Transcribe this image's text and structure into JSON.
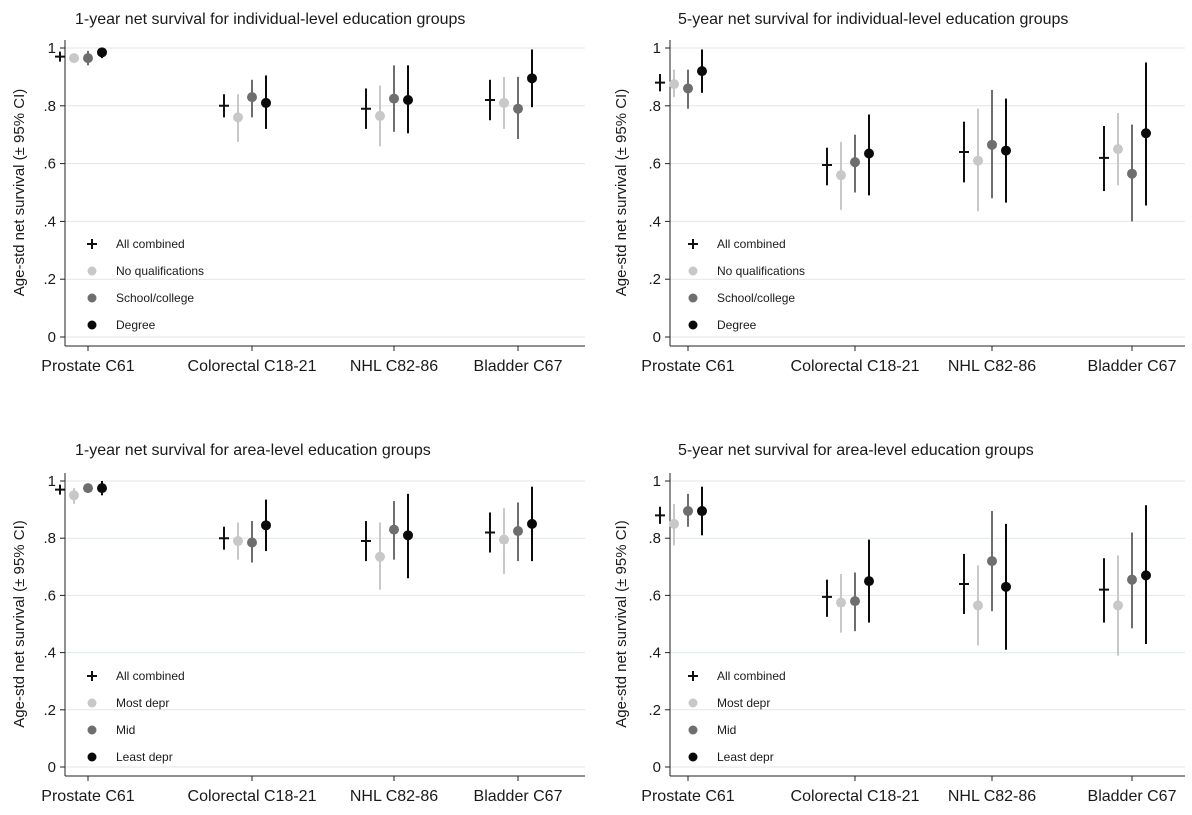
{
  "colors": {
    "All combined": "#111111",
    "light": "#c8c8c8",
    "mid": "#6e6e6e",
    "dark": "#0a0a0a",
    "grid": "#dfe7ea"
  },
  "chart_data": [
    {
      "type": "scatter",
      "title": "1-year net survival for individual-level education groups",
      "ylabel": "Age-std net survival (± 95% CI)",
      "ylim": [
        0,
        1
      ],
      "yticks": [
        0,
        0.2,
        0.4,
        0.6,
        0.8,
        1
      ],
      "ytick_labels": [
        "0",
        ".2",
        ".4",
        ".6",
        ".8",
        "1"
      ],
      "categories": [
        "Prostate C61",
        "Colorectal C18-21",
        "NHL C82-86",
        "Bladder C67"
      ],
      "legend_position": "bottom-left",
      "series": [
        {
          "name": "All combined",
          "marker": "plus",
          "color": "#111111",
          "values": [
            0.97,
            0.8,
            0.79,
            0.82
          ],
          "lower": [
            0.96,
            0.76,
            0.72,
            0.75
          ],
          "upper": [
            0.98,
            0.84,
            0.86,
            0.89
          ]
        },
        {
          "name": "No qualifications",
          "marker": "circle",
          "color": "#c8c8c8",
          "values": [
            0.965,
            0.76,
            0.765,
            0.81
          ],
          "lower": [
            0.95,
            0.675,
            0.66,
            0.72
          ],
          "upper": [
            0.98,
            0.84,
            0.87,
            0.9
          ]
        },
        {
          "name": "School/college",
          "marker": "circle",
          "color": "#6e6e6e",
          "values": [
            0.965,
            0.83,
            0.825,
            0.79
          ],
          "lower": [
            0.94,
            0.76,
            0.71,
            0.685
          ],
          "upper": [
            0.99,
            0.89,
            0.94,
            0.9
          ]
        },
        {
          "name": "Degree",
          "marker": "circle",
          "color": "#0a0a0a",
          "values": [
            0.985,
            0.81,
            0.82,
            0.895
          ],
          "lower": [
            0.965,
            0.72,
            0.705,
            0.795
          ],
          "upper": [
            1.0,
            0.905,
            0.94,
            0.995
          ]
        }
      ]
    },
    {
      "type": "scatter",
      "title": "5-year net survival for individual-level education groups",
      "ylabel": "Age-std net survival (± 95% CI)",
      "ylim": [
        0,
        1
      ],
      "yticks": [
        0,
        0.2,
        0.4,
        0.6,
        0.8,
        1
      ],
      "ytick_labels": [
        "0",
        ".2",
        ".4",
        ".6",
        ".8",
        "1"
      ],
      "categories": [
        "Prostate C61",
        "Colorectal C18-21",
        "NHL C82-86",
        "Bladder C67"
      ],
      "legend_position": "bottom-left",
      "series": [
        {
          "name": "All combined",
          "marker": "plus",
          "color": "#111111",
          "values": [
            0.88,
            0.595,
            0.64,
            0.62
          ],
          "lower": [
            0.85,
            0.525,
            0.535,
            0.505
          ],
          "upper": [
            0.91,
            0.655,
            0.745,
            0.73
          ]
        },
        {
          "name": "No qualifications",
          "marker": "circle",
          "color": "#c8c8c8",
          "values": [
            0.875,
            0.56,
            0.61,
            0.65
          ],
          "lower": [
            0.83,
            0.44,
            0.435,
            0.525
          ],
          "upper": [
            0.925,
            0.675,
            0.79,
            0.775
          ]
        },
        {
          "name": "School/college",
          "marker": "circle",
          "color": "#6e6e6e",
          "values": [
            0.86,
            0.605,
            0.665,
            0.565
          ],
          "lower": [
            0.79,
            0.5,
            0.48,
            0.4
          ],
          "upper": [
            0.925,
            0.7,
            0.855,
            0.735
          ]
        },
        {
          "name": "Degree",
          "marker": "circle",
          "color": "#0a0a0a",
          "values": [
            0.92,
            0.635,
            0.645,
            0.705
          ],
          "lower": [
            0.845,
            0.49,
            0.465,
            0.455
          ],
          "upper": [
            0.995,
            0.77,
            0.825,
            0.95
          ]
        }
      ]
    },
    {
      "type": "scatter",
      "title": "1-year net survival for area-level education groups",
      "ylabel": "Age-std net survival (± 95% CI)",
      "ylim": [
        0,
        1
      ],
      "yticks": [
        0,
        0.2,
        0.4,
        0.6,
        0.8,
        1
      ],
      "ytick_labels": [
        "0",
        ".2",
        ".4",
        ".6",
        ".8",
        "1"
      ],
      "categories": [
        "Prostate C61",
        "Colorectal C18-21",
        "NHL C82-86",
        "Bladder C67"
      ],
      "legend_position": "bottom-left",
      "series": [
        {
          "name": "All combined",
          "marker": "plus",
          "color": "#111111",
          "values": [
            0.97,
            0.8,
            0.79,
            0.82
          ],
          "lower": [
            0.96,
            0.76,
            0.72,
            0.75
          ],
          "upper": [
            0.98,
            0.84,
            0.86,
            0.89
          ]
        },
        {
          "name": "Most depr",
          "marker": "circle",
          "color": "#c8c8c8",
          "values": [
            0.95,
            0.79,
            0.735,
            0.795
          ],
          "lower": [
            0.92,
            0.725,
            0.62,
            0.675
          ],
          "upper": [
            0.975,
            0.855,
            0.855,
            0.905
          ]
        },
        {
          "name": "Mid",
          "marker": "circle",
          "color": "#6e6e6e",
          "values": [
            0.975,
            0.785,
            0.83,
            0.825
          ],
          "lower": [
            0.96,
            0.715,
            0.725,
            0.72
          ],
          "upper": [
            0.99,
            0.86,
            0.93,
            0.925
          ]
        },
        {
          "name": "Least depr",
          "marker": "circle",
          "color": "#0a0a0a",
          "values": [
            0.975,
            0.845,
            0.81,
            0.85
          ],
          "lower": [
            0.95,
            0.755,
            0.66,
            0.72
          ],
          "upper": [
            1.0,
            0.935,
            0.955,
            0.98
          ]
        }
      ]
    },
    {
      "type": "scatter",
      "title": "5-year net survival for area-level education groups",
      "ylabel": "Age-std net survival (± 95% CI)",
      "ylim": [
        0,
        1
      ],
      "yticks": [
        0,
        0.2,
        0.4,
        0.6,
        0.8,
        1
      ],
      "ytick_labels": [
        "0",
        ".2",
        ".4",
        ".6",
        ".8",
        "1"
      ],
      "categories": [
        "Prostate C61",
        "Colorectal C18-21",
        "NHL C82-86",
        "Bladder C67"
      ],
      "legend_position": "bottom-left",
      "series": [
        {
          "name": "All combined",
          "marker": "plus",
          "color": "#111111",
          "values": [
            0.88,
            0.595,
            0.64,
            0.62
          ],
          "lower": [
            0.85,
            0.525,
            0.535,
            0.505
          ],
          "upper": [
            0.91,
            0.655,
            0.745,
            0.73
          ]
        },
        {
          "name": "Most depr",
          "marker": "circle",
          "color": "#c8c8c8",
          "values": [
            0.85,
            0.575,
            0.565,
            0.565
          ],
          "lower": [
            0.775,
            0.47,
            0.425,
            0.39
          ],
          "upper": [
            0.92,
            0.675,
            0.705,
            0.74
          ]
        },
        {
          "name": "Mid",
          "marker": "circle",
          "color": "#6e6e6e",
          "values": [
            0.895,
            0.58,
            0.72,
            0.655
          ],
          "lower": [
            0.84,
            0.475,
            0.545,
            0.485
          ],
          "upper": [
            0.955,
            0.68,
            0.895,
            0.82
          ]
        },
        {
          "name": "Least depr",
          "marker": "circle",
          "color": "#0a0a0a",
          "values": [
            0.895,
            0.65,
            0.63,
            0.67
          ],
          "lower": [
            0.81,
            0.505,
            0.41,
            0.43
          ],
          "upper": [
            0.98,
            0.795,
            0.85,
            0.915
          ]
        }
      ]
    }
  ]
}
